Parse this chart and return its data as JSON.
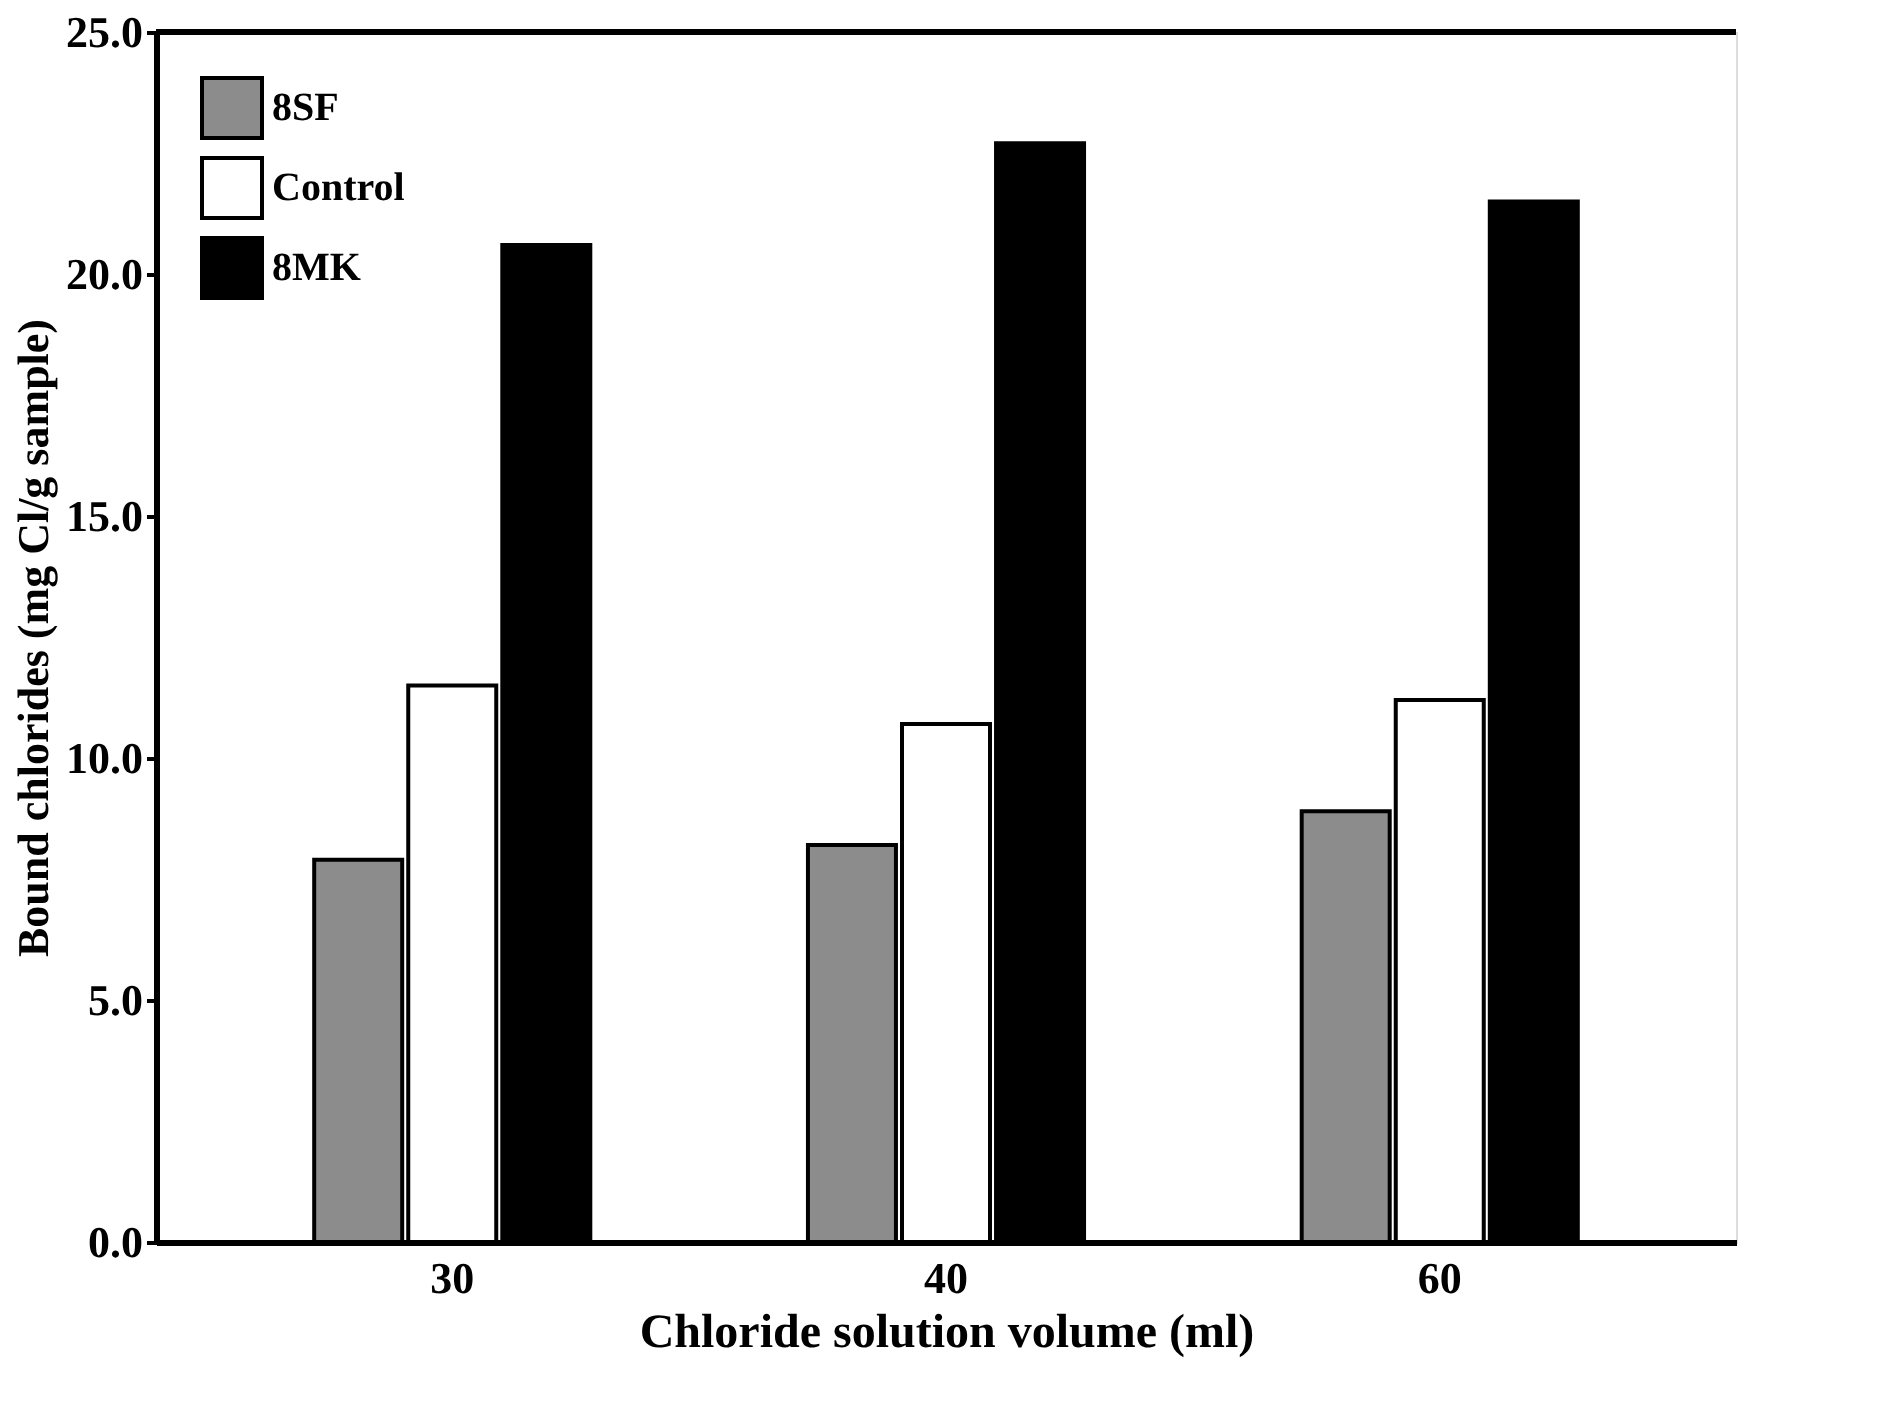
{
  "chart_data": {
    "type": "bar",
    "xlabel": "Chloride solution volume (ml)",
    "ylabel": "Bound chlorides (mg Cl/g sample)",
    "categories": [
      "30",
      "40",
      "60"
    ],
    "series": [
      {
        "name": "8SF",
        "color": "#8c8c8c",
        "values": [
          7.9,
          8.2,
          8.9
        ]
      },
      {
        "name": "Control",
        "color": "#ffffff",
        "values": [
          11.5,
          10.7,
          11.2
        ]
      },
      {
        "name": "8MK",
        "color": "#000000",
        "values": [
          20.6,
          22.7,
          21.5
        ]
      }
    ],
    "ylim": [
      0,
      25
    ],
    "yticks": [
      {
        "value": 0,
        "label": "0.0"
      },
      {
        "value": 5,
        "label": "5.0"
      },
      {
        "value": 10,
        "label": "10.0"
      },
      {
        "value": 15,
        "label": "15.0"
      },
      {
        "value": 20,
        "label": "20.0"
      },
      {
        "value": 25,
        "label": "25.0"
      }
    ],
    "grid": false,
    "legend": "top left"
  }
}
